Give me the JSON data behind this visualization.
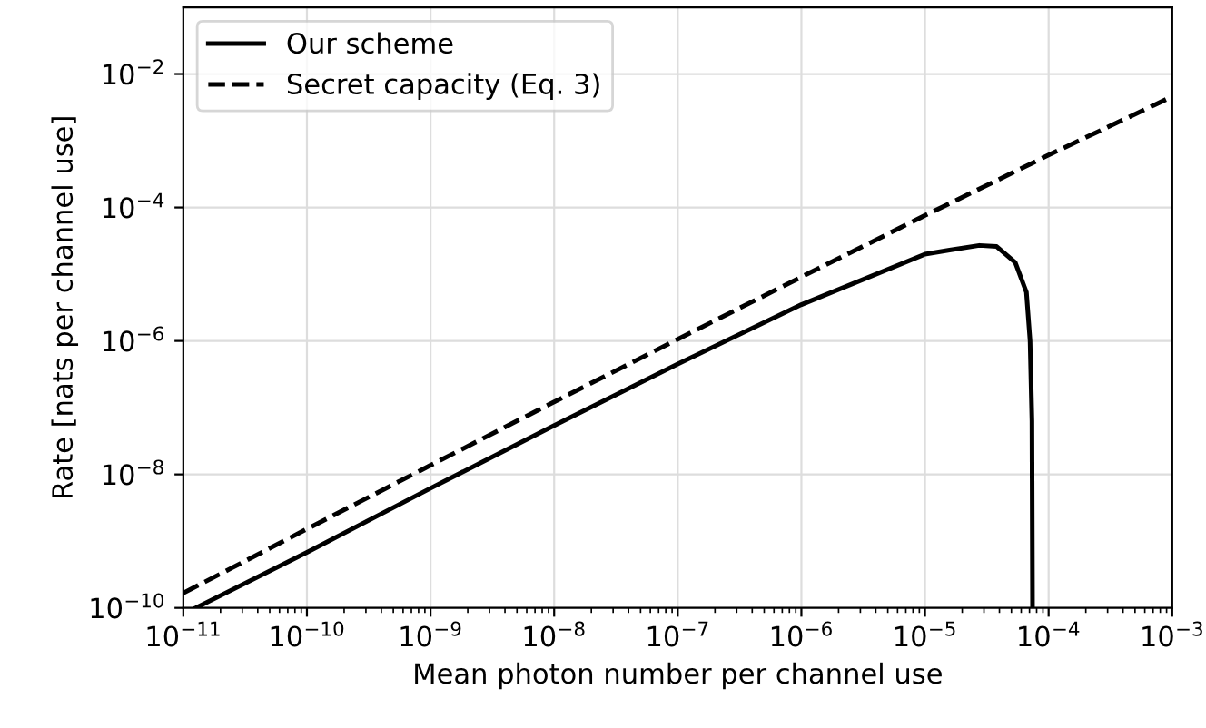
{
  "chart_data": {
    "type": "line",
    "xlabel": "Mean photon number per channel use",
    "ylabel": "Rate [nats per channel use]",
    "log": "xy",
    "grid": true,
    "legend": "top left",
    "xlim": [
      1e-11,
      0.001
    ],
    "ylim": [
      1e-10,
      0.1
    ],
    "xticks": [
      {
        "value": 1e-11,
        "label": "10$^{−11}$"
      },
      {
        "value": 1e-10,
        "label": "10$^{−10}$"
      },
      {
        "value": 1e-09,
        "label": "10$^{−9}$"
      },
      {
        "value": 1e-08,
        "label": "10$^{−8}$"
      },
      {
        "value": 1e-07,
        "label": "10$^{−7}$"
      },
      {
        "value": 1e-06,
        "label": "10$^{−6}$"
      },
      {
        "value": 1e-05,
        "label": "10$^{−5}$"
      },
      {
        "value": 0.0001,
        "label": "10$^{−4}$"
      },
      {
        "value": 0.001,
        "label": "10$^{−3}$"
      }
    ],
    "yticks": [
      {
        "value": 1e-10,
        "label": "10$^{−10}$"
      },
      {
        "value": 1e-08,
        "label": "10$^{−8}$"
      },
      {
        "value": 1e-06,
        "label": "10$^{−6}$"
      },
      {
        "value": 0.0001,
        "label": "10$^{−4}$"
      },
      {
        "value": 0.01,
        "label": "10$^{−2}$"
      }
    ],
    "series": [
      {
        "name": "Our scheme",
        "color": "#000000",
        "line_style": "solid",
        "x": [
          1.26e-11,
          1e-10,
          1e-09,
          1e-08,
          1e-07,
          1e-06,
          1e-05,
          1.58e-05,
          2.75e-05,
          3.8e-05,
          5.37e-05,
          6.61e-05,
          7.08e-05,
          7.33e-05,
          7.41e-05
        ],
        "values": [
          1e-10,
          6.8e-10,
          6.2e-09,
          5.4e-08,
          4.5e-07,
          3.5e-06,
          2e-05,
          2.3e-05,
          2.7e-05,
          2.6e-05,
          1.5e-05,
          5.4e-06,
          1e-06,
          6.3e-08,
          1e-10
        ]
      },
      {
        "name": "Secret capacity (Eq. 3)",
        "color": "#000000",
        "line_style": "dashed",
        "x": [
          1e-11,
          1e-10,
          1e-09,
          1e-08,
          1e-07,
          1e-06,
          1e-05,
          0.0001,
          0.001
        ],
        "values": [
          1.67e-10,
          1.52e-09,
          1.37e-08,
          1.22e-07,
          1.06e-06,
          9.1e-06,
          7.6e-05,
          0.00061,
          0.0046
        ]
      }
    ]
  }
}
